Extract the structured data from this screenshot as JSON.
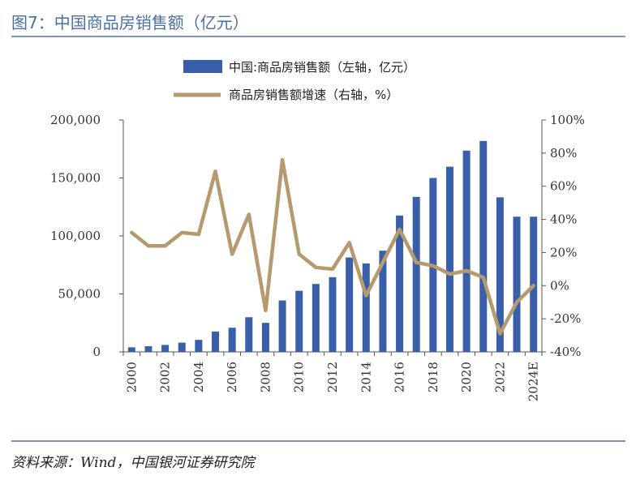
{
  "figure": {
    "title": "图7：中国商品房销售额（亿元）",
    "source": "资料来源：Wind，中国银河证券研究院"
  },
  "colors": {
    "bar": "#3a5faa",
    "line": "#b59a6e",
    "rule": "#8096b4"
  },
  "chart_data": {
    "type": "bar",
    "categories": [
      "2000",
      "2001",
      "2002",
      "2003",
      "2004",
      "2005",
      "2006",
      "2007",
      "2008",
      "2009",
      "2010",
      "2011",
      "2012",
      "2013",
      "2014",
      "2015",
      "2016",
      "2017",
      "2018",
      "2019",
      "2020",
      "2021",
      "2022",
      "2023",
      "2024E"
    ],
    "x_tick_labels": [
      "2000",
      "2002",
      "2004",
      "2006",
      "2008",
      "2010",
      "2012",
      "2014",
      "2016",
      "2018",
      "2020",
      "2022",
      "2024E"
    ],
    "series": [
      {
        "name": "中国:商品房销售额（左轴，亿元）",
        "type": "bar",
        "axis": "left",
        "values": [
          3935,
          4863,
          6032,
          7956,
          10376,
          17576,
          20826,
          29889,
          25068,
          44355,
          52721,
          58589,
          64456,
          81428,
          76292,
          87281,
          117627,
          133701,
          149973,
          159725,
          173613,
          181930,
          133308,
          116622,
          116622
        ]
      },
      {
        "name": "商品房销售额增速（右轴，%）",
        "type": "line",
        "axis": "right",
        "values": [
          32,
          24,
          24,
          32,
          31,
          69,
          19,
          43,
          -15,
          76,
          19,
          11,
          10,
          26,
          -6,
          14,
          34,
          14,
          12,
          7,
          9,
          5,
          -29,
          -10,
          0
        ]
      }
    ],
    "y_left": {
      "min": 0,
      "max": 200000,
      "ticks": [
        "0",
        "50,000",
        "100,000",
        "150,000",
        "200,000"
      ]
    },
    "y_right": {
      "min": -40,
      "max": 100,
      "ticks": [
        "-40%",
        "-20%",
        "0%",
        "20%",
        "40%",
        "60%",
        "80%",
        "100%"
      ]
    },
    "legend_placement": "top-center",
    "grid": false
  }
}
